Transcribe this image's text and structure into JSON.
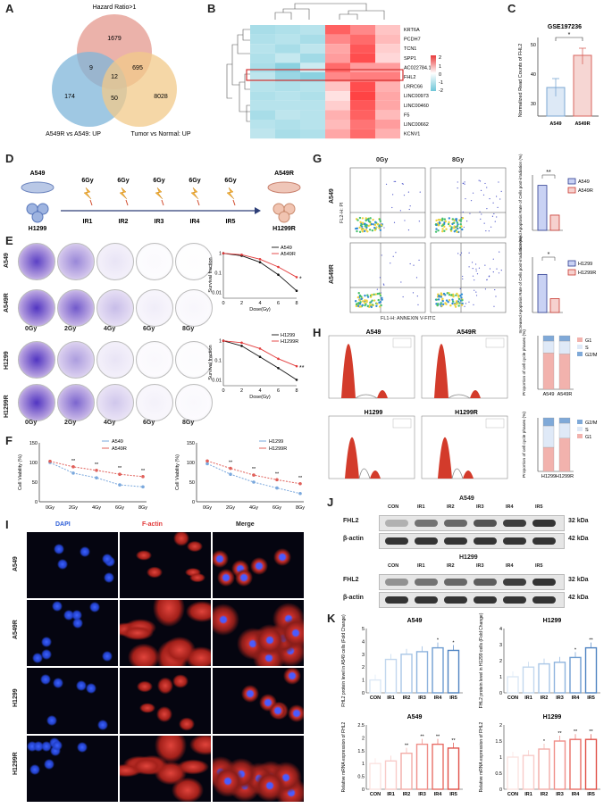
{
  "panels": {
    "A": "A",
    "B": "B",
    "C": "C",
    "D": "D",
    "E": "E",
    "F": "F",
    "G": "G",
    "H": "H",
    "I": "I",
    "J": "J",
    "K": "K"
  },
  "venn": {
    "top": "Hazard Ratio>1",
    "left": "A549R vs A549: UP",
    "right": "Tumor vs Normal: UP",
    "n_top": "1679",
    "n_left": "174",
    "n_right": "8028",
    "n_tl": "9",
    "n_tr": "695",
    "n_lr": "50",
    "n_all": "12"
  },
  "heatmap": {
    "genes": [
      "KRT6A",
      "PCDH7",
      "TCN1",
      "SPP1",
      "AC022784.1",
      "FHL2",
      "LRRC66",
      "LINC00973",
      "LINC00460",
      "F5",
      "LINC00662",
      "KCNV1"
    ],
    "scale": [
      "2",
      "1",
      "0",
      "-1",
      "-2"
    ],
    "colors": {
      "high": "#e8393a",
      "low": "#6ec6d8",
      "mid": "#ffffff"
    }
  },
  "panelC": {
    "title": "GSE197236",
    "ylabel": "Normalized Read Counts of FHL2",
    "categories": [
      "A549",
      "A549R"
    ],
    "values": [
      31,
      44
    ],
    "errors": [
      4.5,
      3.5
    ],
    "yticks": [
      "30",
      "40",
      "50"
    ],
    "sig": "*"
  },
  "panelD": {
    "a549": "A549",
    "h1299": "H1299",
    "a549r": "A549R",
    "h1299r": "H1299R",
    "dose": "6Gy",
    "irs": [
      "IR1",
      "IR2",
      "IR3",
      "IR4",
      "IR5"
    ]
  },
  "panelE": {
    "rows": [
      "A549",
      "A549R",
      "H1299",
      "H1299R"
    ],
    "doses": [
      "0Gy",
      "2Gy",
      "4Gy",
      "6Gy",
      "8Gy"
    ],
    "chart1": {
      "legend": [
        "A549",
        "A549R"
      ],
      "ylabel": "Survival fraction",
      "xlabel": "Dose(Gy)",
      "sig": "*"
    },
    "chart2": {
      "legend": [
        "H1299",
        "H1299R"
      ],
      "ylabel": "Survival fraction",
      "xlabel": "Dose(Gy)",
      "sig": "**"
    }
  },
  "chart_data": [
    {
      "type": "line",
      "title": "",
      "xlabel": "Dose(Gy)",
      "ylabel": "Survival fraction",
      "x": [
        0,
        2,
        4,
        6,
        8
      ],
      "yscale": "log",
      "series": [
        {
          "name": "A549",
          "values": [
            1,
            0.75,
            0.35,
            0.08,
            0.012
          ]
        },
        {
          "name": "A549R",
          "values": [
            1,
            0.85,
            0.5,
            0.2,
            0.06
          ]
        }
      ]
    },
    {
      "type": "line",
      "title": "",
      "xlabel": "Dose(Gy)",
      "ylabel": "Survival fraction",
      "x": [
        0,
        2,
        4,
        6,
        8
      ],
      "yscale": "log",
      "series": [
        {
          "name": "H1299",
          "values": [
            1,
            0.55,
            0.15,
            0.04,
            0.01
          ]
        },
        {
          "name": "H1299R",
          "values": [
            1,
            0.8,
            0.4,
            0.12,
            0.05
          ]
        }
      ]
    },
    {
      "type": "line",
      "ylabel": "Cell Viability (%)",
      "categories": [
        "0Gy",
        "2Gy",
        "4Gy",
        "6Gy",
        "8Gy"
      ],
      "ylim": [
        0,
        150
      ],
      "series": [
        {
          "name": "A549",
          "values": [
            100,
            73,
            61,
            43,
            38
          ]
        },
        {
          "name": "A549R",
          "values": [
            103,
            89,
            80,
            70,
            64
          ]
        }
      ]
    },
    {
      "type": "line",
      "ylabel": "Cell Viability (%)",
      "categories": [
        "0Gy",
        "2Gy",
        "4Gy",
        "6Gy",
        "8Gy"
      ],
      "ylim": [
        0,
        150
      ],
      "series": [
        {
          "name": "H1299",
          "values": [
            97,
            70,
            50,
            35,
            21
          ]
        },
        {
          "name": "H1299R",
          "values": [
            104,
            85,
            68,
            56,
            46
          ]
        }
      ]
    },
    {
      "type": "bar",
      "ylabel": "Increased Apoptosis Rate of Cells post-irradiation (%)",
      "categories": [
        "A549",
        "A549R"
      ],
      "values": [
        6.5,
        2.2
      ],
      "sig": "**"
    },
    {
      "type": "bar",
      "ylabel": "Increased Apoptosis Rate of Cells post-irradiation (%)",
      "categories": [
        "H1299",
        "H1299R"
      ],
      "values": [
        5.5,
        2.0
      ],
      "sig": "*"
    },
    {
      "type": "bar",
      "ylabel": "FHL2 protein level in A549 cells (Fold Change)",
      "categories": [
        "CON",
        "IR1",
        "IR2",
        "IR3",
        "IR4",
        "IR5"
      ],
      "values": [
        1,
        2.6,
        3.0,
        3.2,
        3.5,
        3.3
      ],
      "ylim": [
        0,
        5
      ]
    },
    {
      "type": "bar",
      "ylabel": "FHL2 protein level in H1299 cells (Fold Change)",
      "categories": [
        "CON",
        "IR1",
        "IR2",
        "IR3",
        "IR4",
        "IR5"
      ],
      "values": [
        1,
        1.6,
        1.8,
        1.9,
        2.2,
        2.8
      ],
      "ylim": [
        0,
        4
      ]
    },
    {
      "type": "bar",
      "ylabel": "Relative mRNA expression of FHL2",
      "categories": [
        "CON",
        "IR1",
        "IR2",
        "IR3",
        "IR4",
        "IR5"
      ],
      "values": [
        1,
        1.1,
        1.4,
        1.75,
        1.75,
        1.6
      ],
      "ylim": [
        0,
        2.5
      ]
    },
    {
      "type": "bar",
      "ylabel": "Relative mRNA expression of FHL2",
      "categories": [
        "CON",
        "IR1",
        "IR2",
        "IR3",
        "IR4",
        "IR5"
      ],
      "values": [
        1,
        1.05,
        1.25,
        1.5,
        1.55,
        1.55
      ],
      "ylim": [
        0,
        2
      ]
    }
  ],
  "panelF": {
    "xcats": [
      "0Gy",
      "2Gy",
      "4Gy",
      "6Gy",
      "8Gy"
    ],
    "ylabel": "Cell Viability (%)",
    "yticks": [
      "0",
      "50",
      "100",
      "150"
    ],
    "leg1": [
      "A549",
      "A549R"
    ],
    "leg2": [
      "H1299",
      "H1299R"
    ],
    "sig": [
      "**",
      "**",
      "**",
      "**"
    ]
  },
  "panelG": {
    "cols": [
      "0Gy",
      "8Gy"
    ],
    "rows": [
      "A549",
      "A549R"
    ],
    "ylabel": "FL2-H: PI",
    "xlabel": "FL1-H: ANNEXIN V-FITC",
    "leg1": [
      "A549",
      "A549R"
    ],
    "leg2": [
      "H1299",
      "H1299R"
    ],
    "sig1": "**",
    "sig2": "*",
    "ylabel_bar": "Increased Apoptosis Rate of Cells post-irradiation (%)"
  },
  "panelH": {
    "labels": [
      "A549",
      "A549R",
      "H1299",
      "H1299R"
    ],
    "leg1": [
      "G1",
      "S",
      "G2/M"
    ],
    "leg2": [
      "G2/M",
      "S",
      "G1"
    ],
    "ylabel": "Proportion of cell cycle phases (%)",
    "cats1": [
      "A549",
      "A549R"
    ],
    "cats2": [
      "H1299",
      "H1299R"
    ]
  },
  "panelI": {
    "cols": [
      "DAPI",
      "F-actin",
      "Merge"
    ],
    "rows": [
      "A549",
      "A549R",
      "H1299",
      "H1299R"
    ],
    "colors": {
      "dapi": "#2f5fd8",
      "factin": "#e23a3a"
    }
  },
  "panelJ": {
    "title1": "A549",
    "title2": "H1299",
    "lanes": [
      "CON",
      "IR1",
      "IR2",
      "IR3",
      "IR4",
      "IR5"
    ],
    "proteins": [
      "FHL2",
      "β-actin"
    ],
    "kda": [
      "32 kDa",
      "42 kDa"
    ]
  },
  "panelK": {
    "t1": "A549",
    "t2": "H1299",
    "t3": "A549",
    "t4": "H1299",
    "y1": "FHL2 protein level in A549 cells (Fold Change)",
    "y2": "FHL2 protein level in H1299 cells (Fold Change)",
    "y3": "Relative mRNA expression of FHL2",
    "y4": "Relative mRNA expression of FHL2",
    "cats": [
      "CON",
      "IR1",
      "IR2",
      "IR3",
      "IR4",
      "IR5"
    ]
  }
}
